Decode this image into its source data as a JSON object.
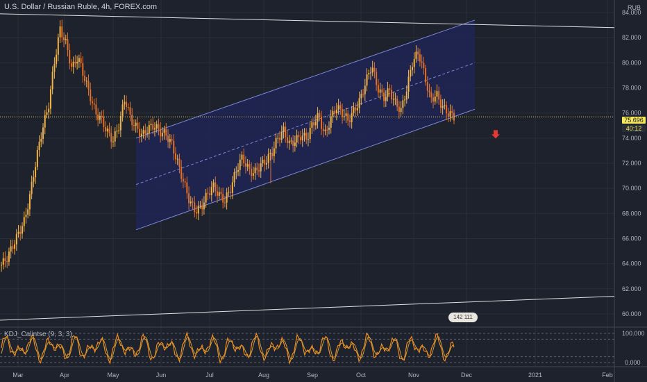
{
  "header": {
    "title": "U.S. Dollar / Russian Ruble, 4h, FOREX.com"
  },
  "indicator": {
    "title": "KDJ_Calintse (9, 3, 3)"
  },
  "axis": {
    "currency": "RUB",
    "price_ticks": [
      "84.000",
      "82.000",
      "80.000",
      "78.000",
      "76.000",
      "74.000",
      "72.000",
      "70.000",
      "68.000",
      "66.000",
      "64.000",
      "62.000",
      "60.000"
    ],
    "indicator_ticks": [
      "100.000",
      "0.000"
    ],
    "time_ticks": [
      "Mar",
      "Apr",
      "May",
      "Jun",
      "Jul",
      "Aug",
      "Sep",
      "Oct",
      "Nov",
      "Dec",
      "2021",
      "Feb"
    ]
  },
  "last_price": {
    "value": "75.696",
    "timer": "40:12"
  },
  "badge": {
    "text": "142 111"
  },
  "colors": {
    "background": "#1e222d",
    "candles": "#f0a030",
    "channel_fill": "#1f2554",
    "channel_line": "#7a86d8",
    "down_arrow": "#e53935",
    "last_price": "#f5e65b",
    "kdj_line": "#f08c1e"
  },
  "chart_data": {
    "type": "line",
    "series": [
      {
        "values": [
          63.9,
          64.5,
          65.5,
          66.5,
          67.5,
          69.8,
          72.5,
          74.8,
          76.5,
          80.0,
          82.7,
          81.5,
          79.5,
          80.5,
          79.0,
          77.5,
          76.0,
          75.5,
          74.5,
          73.8,
          75.0,
          77.2,
          75.5,
          74.8,
          74.2,
          74.8,
          75.0,
          74.5,
          74.3,
          73.5,
          72.0,
          70.5,
          69.0,
          68.2,
          68.5,
          69.5,
          70.2,
          69.5,
          69.0,
          70.0,
          71.5,
          72.5,
          71.5,
          71.2,
          71.8,
          72.2,
          72.8,
          74.0,
          74.6,
          73.5,
          73.8,
          74.2,
          74.0,
          75.2,
          75.8,
          74.2,
          75.5,
          76.5,
          76.0,
          75.4,
          76.2,
          77.0,
          78.5,
          79.8,
          78.0,
          77.2,
          77.8,
          76.8,
          76.2,
          78.0,
          80.2,
          80.8,
          79.0,
          77.0,
          77.5,
          76.5,
          76.0,
          75.7
        ]
      }
    ],
    "xlim": [
      "Mar",
      "Feb"
    ],
    "ylim": [
      59,
      85
    ],
    "channel": {
      "upper": [
        74.0,
        83.4
      ],
      "lower": [
        66.7,
        76.3
      ],
      "mid": [
        70.3,
        80.0
      ]
    },
    "trendlines": [
      {
        "from": 83.9,
        "to": 82.8
      },
      {
        "from": 59.5,
        "to": 61.4
      }
    ],
    "last_price": 75.696,
    "kdj_range": [
      0,
      100
    ],
    "grid": true
  }
}
